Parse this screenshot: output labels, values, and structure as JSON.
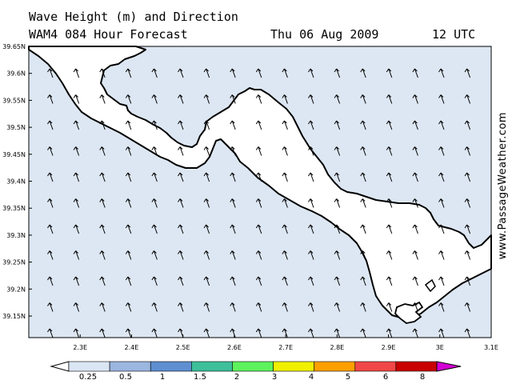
{
  "title_line1": "Wave Height (m) and Direction",
  "title_line2": "WAM4 084 Hour Forecast",
  "forecast_date": "Thu 06 Aug 2009",
  "forecast_time": "12 UTC",
  "watermark": "www.PassageWeather.com",
  "map": {
    "lat_labels": [
      "39.65N",
      "39.6N",
      "39.55N",
      "39.5N",
      "39.45N",
      "39.4N",
      "39.35N",
      "39.3N",
      "39.25N",
      "39.2N",
      "39.15N"
    ],
    "lon_labels": [
      "2.3E",
      "2.4E",
      "2.5E",
      "2.6E",
      "2.7E",
      "2.8E",
      "2.9E",
      "3E",
      "3.1E"
    ],
    "lat_range": [
      39.11,
      39.65
    ],
    "lon_range": [
      2.2,
      3.1
    ],
    "sea_color": "#dde7f3",
    "land_color": "#ffffff",
    "arrow_direction": "north-northwest"
  },
  "legend": {
    "labels": [
      "0.25",
      "0.5",
      "1",
      "1.5",
      "2",
      "3",
      "4",
      "5",
      "6",
      "8"
    ],
    "colors": [
      "#ffffff",
      "#dbe6f4",
      "#9bb6df",
      "#5f8fd1",
      "#3dbf9a",
      "#5ef25e",
      "#f0f000",
      "#ffa000",
      "#f04848",
      "#c80000",
      "#d400d4"
    ]
  }
}
